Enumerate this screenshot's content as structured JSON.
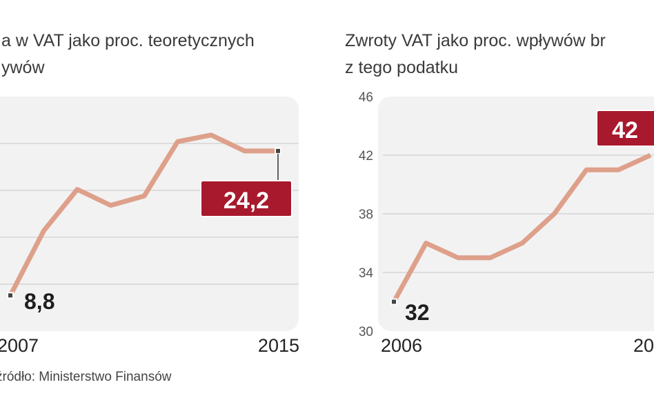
{
  "colors": {
    "panel": "#f2f2f2",
    "grid": "#d4d4d4",
    "line": "#dea08a",
    "highlight": "#a8192e",
    "marker": "#444444"
  },
  "source": "źródło: Ministerstwo Finansów",
  "chart_data": [
    {
      "type": "line",
      "title_lines": [
        "a w VAT jako proc. teoretycznych",
        "ywów"
      ],
      "x": [
        2007,
        2008,
        2009,
        2010,
        2011,
        2012,
        2013,
        2014,
        2015
      ],
      "values": [
        8.8,
        15.7,
        20.1,
        18.4,
        19.4,
        25.2,
        25.9,
        24.2,
        24.2
      ],
      "x_tick_labels": [
        "2007",
        "2015"
      ],
      "ylim": [
        5,
        30
      ],
      "gridlines": [
        10,
        15,
        20,
        25
      ],
      "start_label": "8,8",
      "end_label": "24,2",
      "grid": true
    },
    {
      "type": "line",
      "title_lines": [
        "Zwroty VAT jako proc. wpływów br",
        "z tego podatku"
      ],
      "x": [
        2006,
        2007,
        2008,
        2009,
        2010,
        2011,
        2012,
        2013,
        2014
      ],
      "values": [
        32,
        36,
        35,
        35,
        36,
        38,
        41,
        41,
        42
      ],
      "x_tick_labels": [
        "2006",
        "20"
      ],
      "y_tick_labels": [
        "46",
        "42",
        "38",
        "34",
        "30"
      ],
      "ylim": [
        30,
        46
      ],
      "gridlines": [
        34,
        38,
        42
      ],
      "start_label": "32",
      "end_label": "42",
      "grid": true
    }
  ]
}
